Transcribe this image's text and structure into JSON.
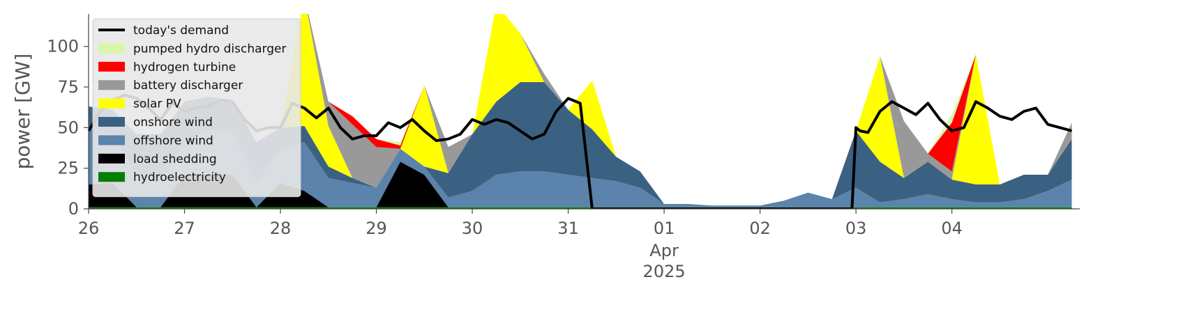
{
  "chart_data": {
    "type": "area",
    "ylabel": "power [GW]",
    "ylim": [
      0,
      120
    ],
    "yticks": [
      "0",
      "25",
      "50",
      "75",
      "100"
    ],
    "xlim": [
      0,
      216
    ],
    "x_unit": "hours from 26 Mar 2025 00:00",
    "xticks": [
      {
        "x": 0,
        "label": "26"
      },
      {
        "x": 24,
        "label": "27"
      },
      {
        "x": 48,
        "label": "28"
      },
      {
        "x": 72,
        "label": "29"
      },
      {
        "x": 96,
        "label": "30"
      },
      {
        "x": 120,
        "label": "31"
      },
      {
        "x": 144,
        "label": "01"
      },
      {
        "x": 168,
        "label": "02"
      },
      {
        "x": 192,
        "label": "03"
      },
      {
        "x": 216,
        "label": "04"
      }
    ],
    "xticks_sub": {
      "month": "Apr",
      "year": "2025"
    },
    "grid": false,
    "legend_position": "upper-left",
    "legend": [
      {
        "name": "today's demand",
        "color": "#000000",
        "kind": "line"
      },
      {
        "name": "pumped hydro discharger",
        "color": "#d8f7a8",
        "kind": "patch"
      },
      {
        "name": "hydrogen turbine",
        "color": "#ff0000",
        "kind": "patch"
      },
      {
        "name": "battery discharger",
        "color": "#999999",
        "kind": "patch"
      },
      {
        "name": "solar PV",
        "color": "#ffff00",
        "kind": "patch"
      },
      {
        "name": "onshore wind",
        "color": "#3b6182",
        "kind": "patch"
      },
      {
        "name": "offshore wind",
        "color": "#5b83ab",
        "kind": "patch"
      },
      {
        "name": "load shedding",
        "color": "#000000",
        "kind": "patch"
      },
      {
        "name": "hydroelectricity",
        "color": "#008000",
        "kind": "patch"
      }
    ],
    "hours": [
      0,
      6,
      12,
      18,
      24,
      30,
      36,
      42,
      48,
      54,
      60,
      66,
      72,
      78,
      84,
      90,
      96,
      102,
      108,
      114,
      120,
      126,
      132,
      138,
      144,
      150,
      156,
      162,
      168,
      174,
      180,
      186,
      192,
      198,
      204,
      210,
      216,
      222,
      228,
      234,
      240,
      246
    ],
    "series": [
      {
        "name": "hydroelectricity",
        "color": "#008000",
        "values": [
          1,
          1,
          1,
          1,
          1,
          1,
          1,
          1,
          1,
          1,
          1,
          1,
          1,
          1,
          1,
          1,
          1,
          1,
          1,
          1,
          1,
          1,
          1,
          1,
          1,
          1,
          1,
          1,
          1,
          1,
          1,
          1,
          1,
          1,
          1,
          1,
          1,
          1,
          1,
          1,
          1,
          1
        ]
      },
      {
        "name": "load shedding",
        "color": "#000000",
        "values": [
          14,
          15,
          0,
          0,
          20,
          20,
          20,
          0,
          15,
          10,
          0,
          0,
          0,
          28,
          20,
          0,
          0,
          0,
          0,
          0,
          0,
          0,
          0,
          0,
          0,
          0,
          0,
          0,
          0,
          0,
          0,
          0,
          0,
          0,
          0,
          0,
          0,
          0,
          0,
          0,
          0,
          0
        ]
      },
      {
        "name": "offshore wind",
        "color": "#5b83ab",
        "values": [
          36,
          30,
          20,
          15,
          20,
          28,
          26,
          15,
          20,
          30,
          18,
          15,
          12,
          8,
          5,
          6,
          10,
          20,
          22,
          22,
          20,
          18,
          16,
          12,
          2,
          2,
          1,
          1,
          1,
          4,
          9,
          5,
          12,
          3,
          5,
          8,
          5,
          3,
          3,
          5,
          10,
          17
        ]
      },
      {
        "name": "onshore wind",
        "color": "#3b6182",
        "values": [
          12,
          15,
          25,
          30,
          25,
          20,
          20,
          25,
          14,
          10,
          7,
          3,
          0,
          0,
          0,
          15,
          35,
          45,
          55,
          55,
          40,
          30,
          15,
          10,
          0,
          0,
          0,
          0,
          0,
          0,
          0,
          0,
          35,
          25,
          13,
          20,
          12,
          11,
          11,
          15,
          10,
          25
        ]
      },
      {
        "name": "solar PV",
        "color": "#ffff00",
        "values": [
          0,
          0,
          0,
          0,
          0,
          0,
          0,
          0,
          0,
          80,
          25,
          0,
          0,
          0,
          50,
          0,
          0,
          60,
          30,
          0,
          0,
          30,
          0,
          0,
          0,
          0,
          0,
          0,
          0,
          0,
          0,
          0,
          0,
          65,
          0,
          0,
          0,
          80,
          0,
          0,
          0,
          0
        ]
      },
      {
        "name": "battery discharger",
        "color": "#999999",
        "values": [
          0,
          0,
          0,
          0,
          0,
          0,
          0,
          0,
          0,
          0,
          15,
          33,
          25,
          0,
          0,
          16,
          0,
          0,
          0,
          5,
          0,
          0,
          0,
          0,
          0,
          0,
          0,
          0,
          0,
          0,
          0,
          0,
          0,
          0,
          35,
          5,
          5,
          0,
          0,
          0,
          0,
          10
        ]
      },
      {
        "name": "hydrogen turbine",
        "color": "#ff0000",
        "values": [
          0,
          0,
          0,
          0,
          0,
          0,
          0,
          0,
          0,
          0,
          0,
          5,
          5,
          2,
          0,
          0,
          0,
          0,
          0,
          0,
          0,
          0,
          0,
          0,
          0,
          0,
          0,
          0,
          0,
          0,
          0,
          0,
          0,
          0,
          0,
          0,
          30,
          0,
          0,
          0,
          0,
          0
        ]
      },
      {
        "name": "pumped hydro discharger",
        "color": "#d8f7a8",
        "values": [
          0,
          0,
          0,
          0,
          0,
          0,
          0,
          0,
          0,
          0,
          0,
          0,
          0,
          2,
          0,
          0,
          0,
          0,
          0,
          0,
          0,
          0,
          0,
          0,
          0,
          0,
          0,
          0,
          0,
          0,
          0,
          0,
          0,
          0,
          0,
          0,
          5,
          0,
          0,
          0,
          0,
          0
        ]
      }
    ],
    "demand": {
      "name": "today's demand",
      "color": "#000000",
      "hours": [
        0,
        3,
        6,
        9,
        12,
        15,
        18,
        21,
        24,
        27,
        30,
        33,
        36,
        39,
        42,
        45,
        48,
        51,
        54,
        57,
        60,
        63,
        66,
        69,
        72,
        75,
        78,
        81,
        84,
        87,
        90,
        93,
        96,
        99,
        102,
        105,
        108,
        111,
        114,
        117,
        120,
        123,
        126,
        129,
        132,
        133,
        134,
        135,
        136,
        138,
        140,
        144,
        150,
        156,
        162,
        168,
        174,
        180,
        186,
        191,
        192,
        193,
        195,
        198,
        201,
        204,
        207,
        210,
        213,
        216,
        219,
        222,
        225,
        228,
        231,
        234,
        237,
        240,
        243,
        246
      ],
      "values": [
        48,
        60,
        67,
        70,
        68,
        62,
        55,
        65,
        60,
        62,
        63,
        67,
        66,
        55,
        48,
        50,
        50,
        65,
        62,
        56,
        62,
        50,
        43,
        45,
        45,
        53,
        50,
        55,
        48,
        42,
        43,
        46,
        55,
        52,
        55,
        53,
        48,
        43,
        46,
        60,
        68,
        65,
        0,
        0,
        0,
        0,
        0,
        0,
        0,
        0,
        0,
        0,
        0,
        0,
        0,
        0,
        0,
        0,
        0,
        0,
        50,
        48,
        47,
        60,
        66,
        62,
        58,
        65,
        55,
        48,
        50,
        66,
        62,
        57,
        55,
        60,
        62,
        52,
        50,
        48
      ]
    },
    "history_line": {
      "color": "#aaaaaa",
      "hours": [
        0,
        3,
        6,
        9,
        12,
        15,
        18,
        21,
        24,
        27,
        30,
        33,
        36,
        39,
        42,
        45,
        48
      ],
      "values": [
        48,
        60,
        67,
        70,
        68,
        62,
        55,
        65,
        60,
        62,
        63,
        67,
        66,
        55,
        48,
        50,
        50
      ]
    }
  }
}
